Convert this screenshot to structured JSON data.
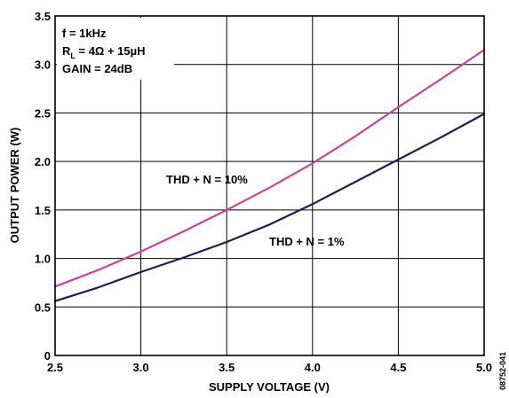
{
  "chart_data": {
    "type": "line",
    "xlabel": "SUPPLY VOLTAGE (V)",
    "ylabel": "OUTPUT POWER (W)",
    "xlim": [
      2.5,
      5.0
    ],
    "ylim": [
      0,
      3.5
    ],
    "xticks": [
      "2.5",
      "3.0",
      "3.5",
      "4.0",
      "4.5",
      "5.0"
    ],
    "yticks": [
      "0",
      "0.5",
      "1.0",
      "1.5",
      "2.0",
      "2.5",
      "3.0",
      "3.5"
    ],
    "grid": true,
    "conditions": {
      "freq": "f = 1kHz",
      "load_prefix": "R",
      "load_sub": "L",
      "load_rest": " = 4Ω + 15µH",
      "gain": "GAIN = 24dB"
    },
    "figure_id": "08752-041",
    "series": [
      {
        "name": "THD + N = 10%",
        "color": "#c0479a",
        "x": [
          2.5,
          2.75,
          3.0,
          3.25,
          3.5,
          3.75,
          4.0,
          4.25,
          4.5,
          4.75,
          5.0
        ],
        "y": [
          0.71,
          0.88,
          1.07,
          1.28,
          1.5,
          1.73,
          1.98,
          2.26,
          2.56,
          2.85,
          3.15
        ]
      },
      {
        "name": "THD + N = 1%",
        "color": "#1f1d4d",
        "x": [
          2.5,
          2.75,
          3.0,
          3.25,
          3.5,
          3.75,
          4.0,
          4.25,
          4.5,
          4.75,
          5.0
        ],
        "y": [
          0.56,
          0.7,
          0.86,
          1.01,
          1.17,
          1.35,
          1.56,
          1.79,
          2.02,
          2.25,
          2.49
        ]
      }
    ]
  }
}
